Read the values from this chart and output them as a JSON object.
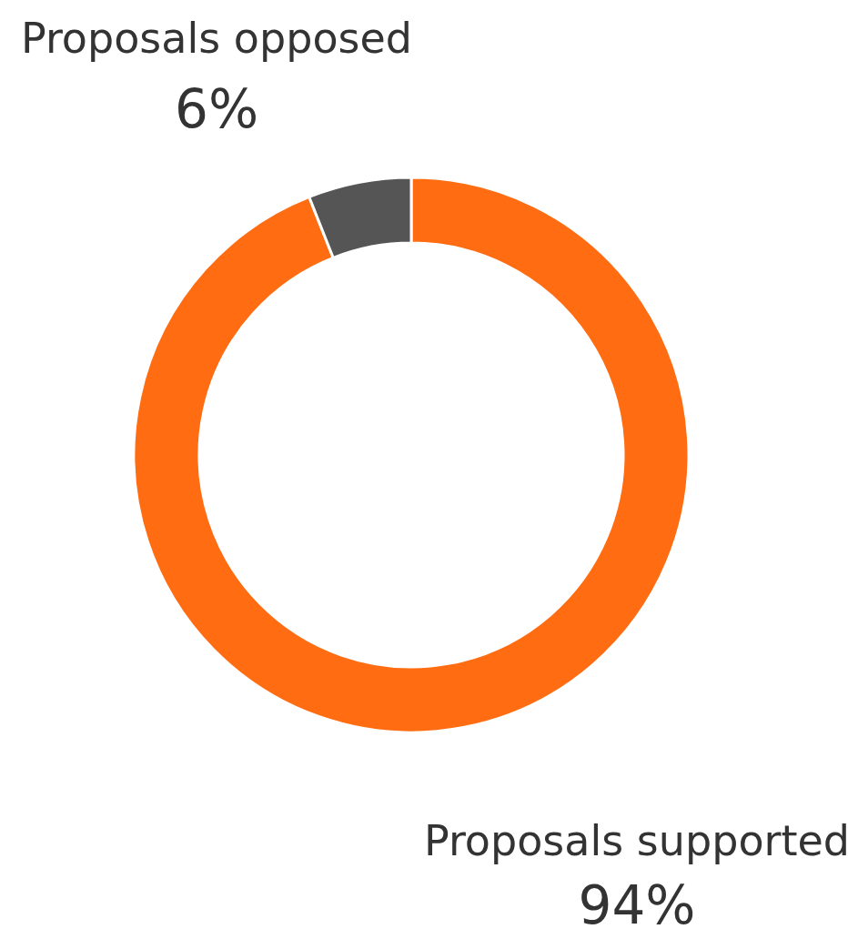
{
  "chart_data": {
    "type": "donut",
    "categories": [
      "Proposals supported",
      "Proposals opposed"
    ],
    "values": [
      94,
      6
    ],
    "value_labels": [
      "94%",
      "6%"
    ],
    "colors": [
      "#ff6c11",
      "#555555"
    ],
    "legend": false
  }
}
